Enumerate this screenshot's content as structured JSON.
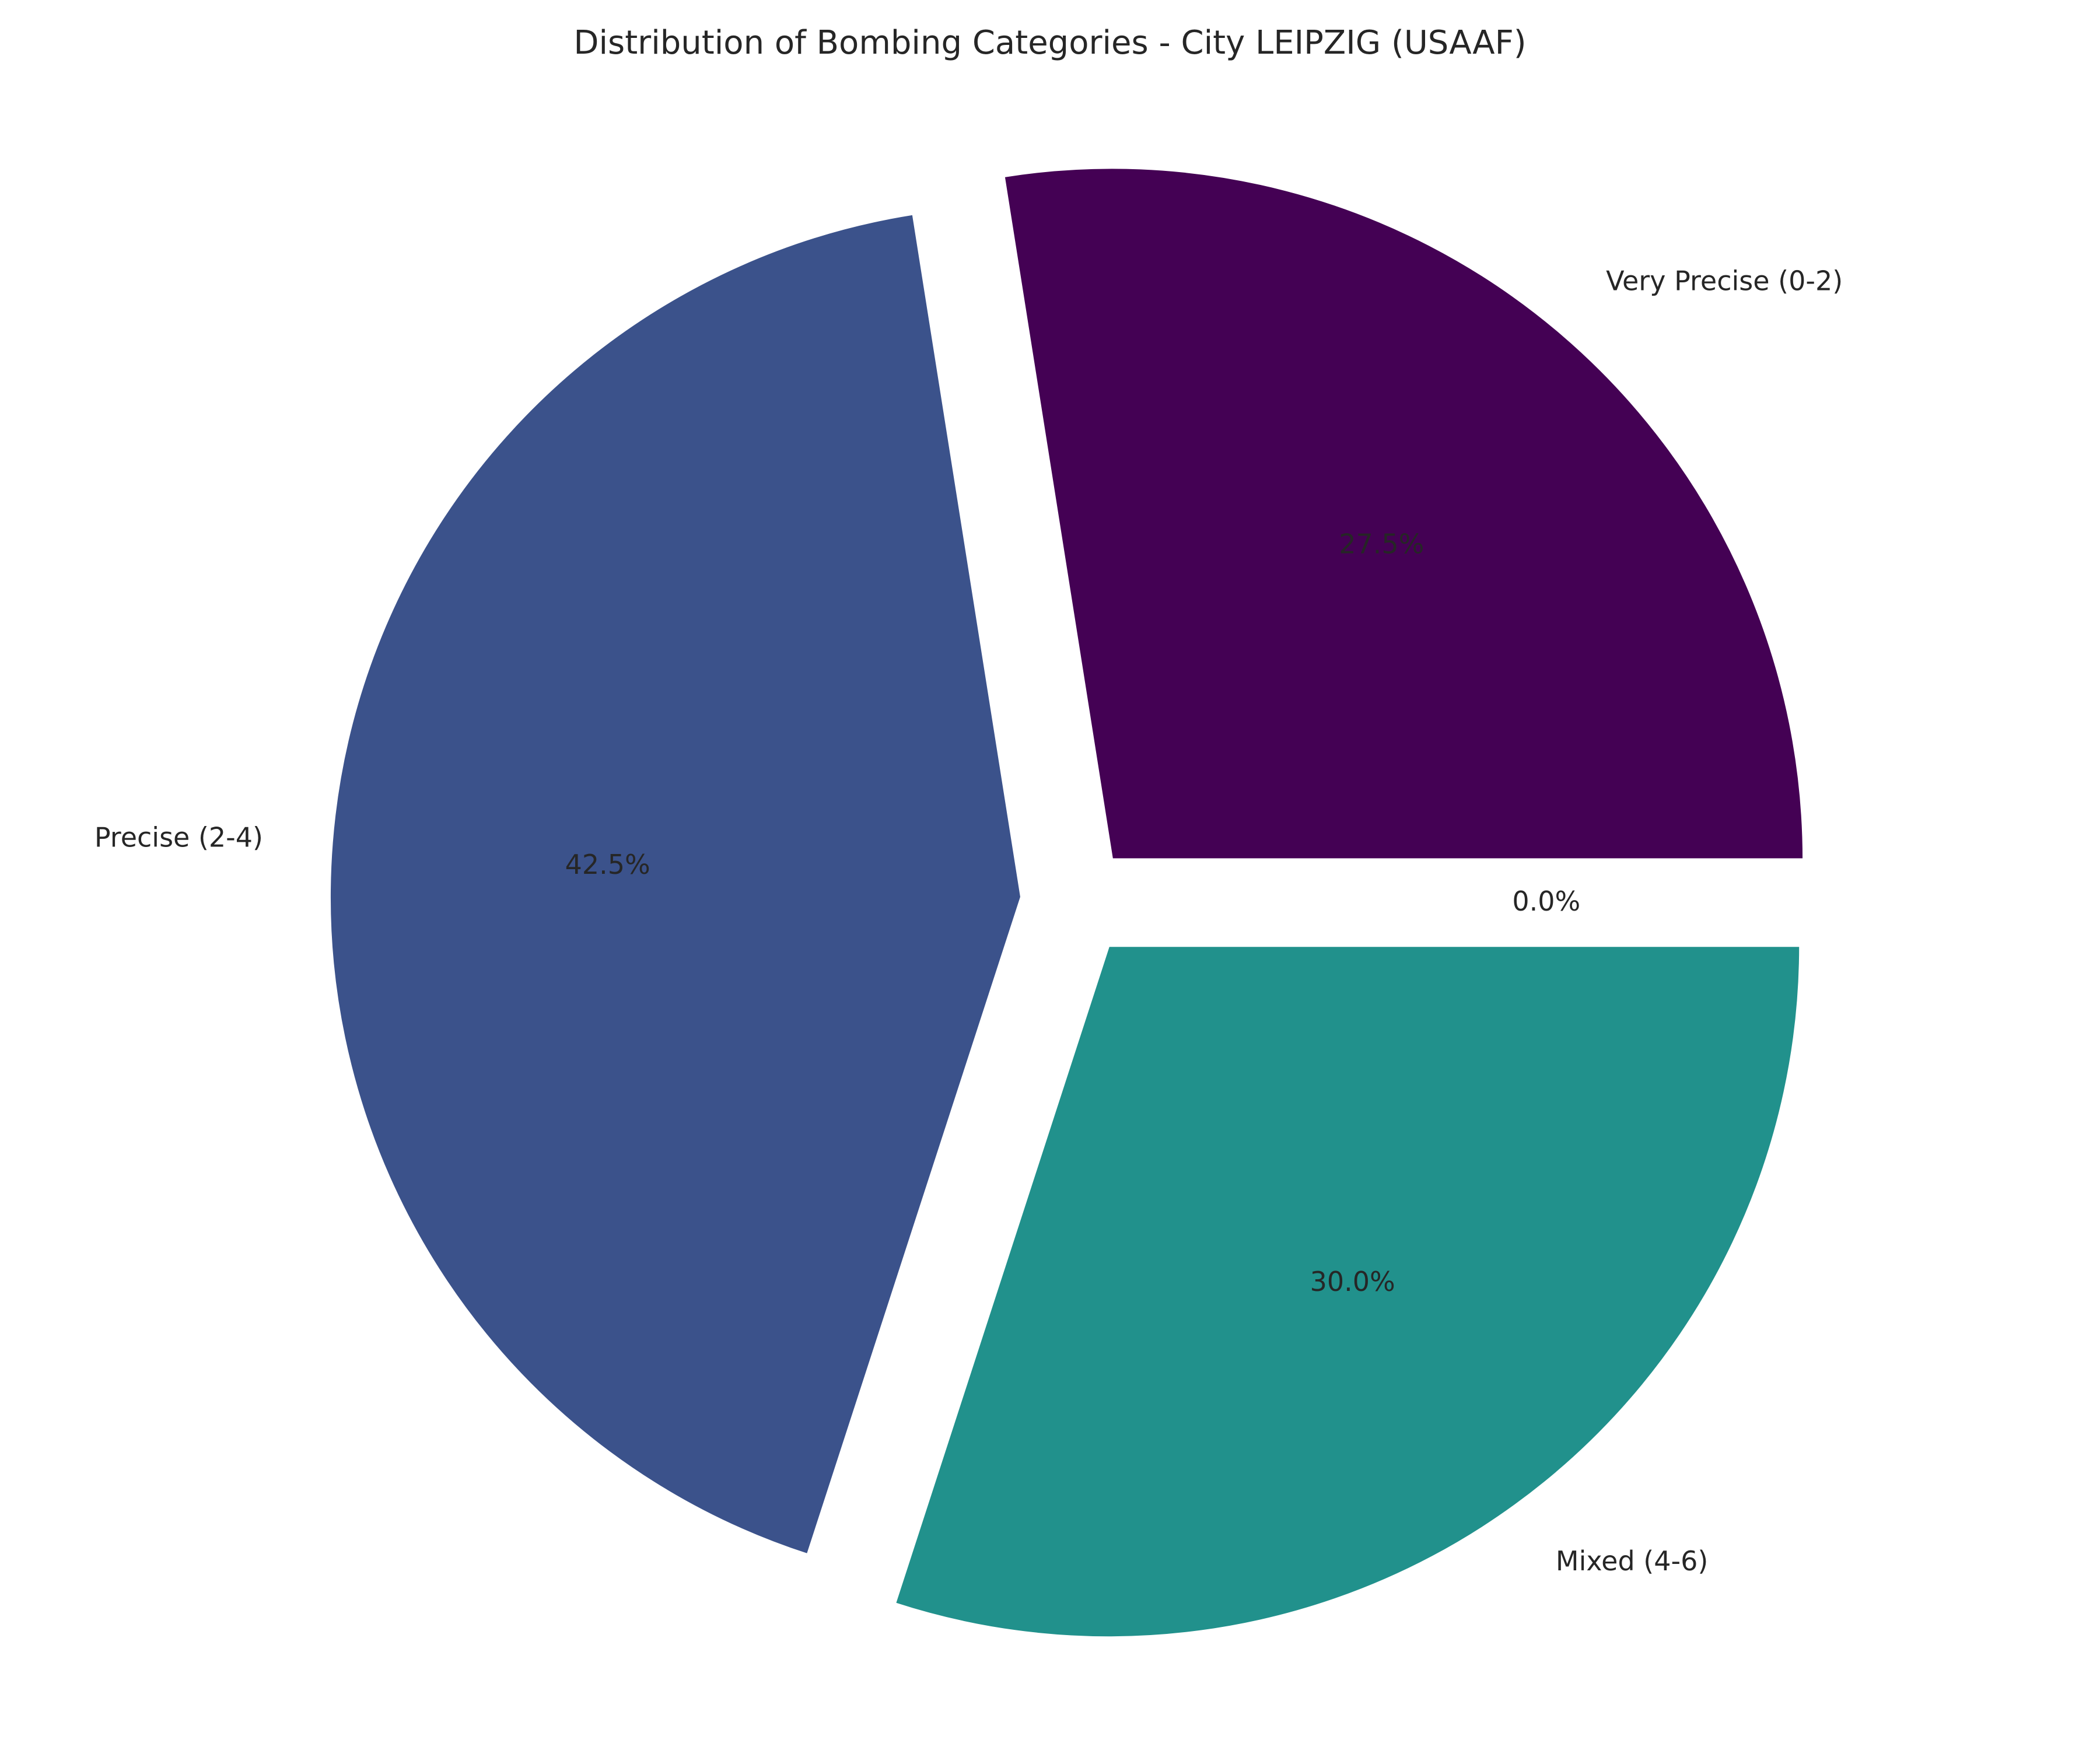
{
  "chart_data": {
    "type": "pie",
    "title": "Distribution of Bombing Categories - City LEIPZIG (USAAF)",
    "start_angle_deg": 0,
    "direction": "counterclockwise",
    "explode": 0.08,
    "slices": [
      {
        "label": "Very Precise (0-2)",
        "value": 27.5,
        "pct_label": "27.5%",
        "color": "#440154"
      },
      {
        "label": "Precise (2-4)",
        "value": 42.5,
        "pct_label": "42.5%",
        "color": "#3b528b"
      },
      {
        "label": "Mixed (4-6)",
        "value": 30.0,
        "pct_label": "30.0%",
        "color": "#21918c"
      },
      {
        "label": "",
        "value": 0.0,
        "pct_label": "0.0%",
        "color": "#5ec962"
      }
    ]
  }
}
